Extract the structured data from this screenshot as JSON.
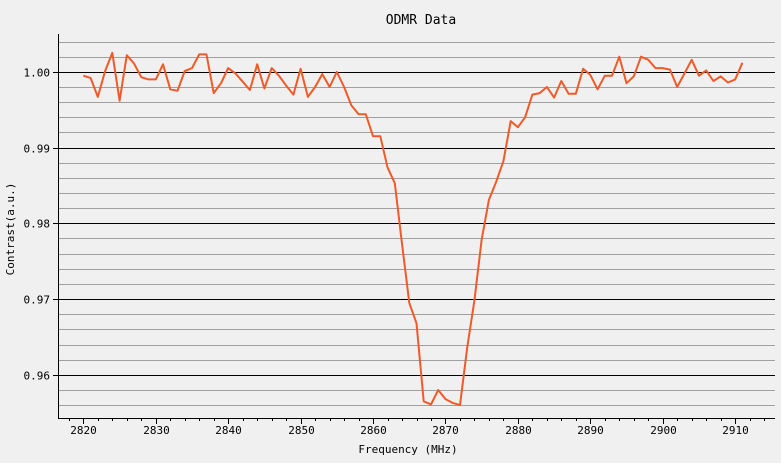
{
  "chart_data": {
    "type": "line",
    "title": "ODMR Data",
    "xlabel": "Frequency (MHz)",
    "ylabel": "Contrast(a.u.)",
    "xlim": [
      2816.5,
      2915.5
    ],
    "ylim": [
      0.9543,
      1.005
    ],
    "x_ticks": [
      2820,
      2830,
      2840,
      2850,
      2860,
      2870,
      2880,
      2890,
      2900,
      2910
    ],
    "x_tick_labels": [
      "2820",
      "2830",
      "2840",
      "2850",
      "2860",
      "2870",
      "2880",
      "2890",
      "2900",
      "2910"
    ],
    "y_major_ticks": [
      0.96,
      0.97,
      0.98,
      0.99,
      1.0
    ],
    "y_tick_labels": [
      "0.96",
      "0.97",
      "0.98",
      "0.99",
      "1.00"
    ],
    "y_minor_step": 0.002,
    "grid": true,
    "colors": {
      "line": "#f05a28",
      "major_grid": "#000000",
      "minor_grid": "#a0a0a0",
      "plot_background": "#f0f0f0"
    },
    "series": [
      {
        "x": [
          2820,
          2821,
          2822,
          2823,
          2824,
          2825,
          2826,
          2827,
          2828,
          2829,
          2830,
          2831,
          2832,
          2833,
          2834,
          2835,
          2836,
          2837,
          2838,
          2839,
          2840,
          2841,
          2842,
          2843,
          2844,
          2845,
          2846,
          2847,
          2848,
          2849,
          2850,
          2851,
          2852,
          2853,
          2854,
          2855,
          2856,
          2857,
          2858,
          2859,
          2860,
          2861,
          2862,
          2863,
          2864,
          2865,
          2866,
          2867,
          2868,
          2869,
          2870,
          2871,
          2872,
          2873,
          2874,
          2875,
          2876,
          2877,
          2878,
          2879,
          2880,
          2881,
          2882,
          2883,
          2884,
          2885,
          2886,
          2887,
          2888,
          2889,
          2890,
          2891,
          2892,
          2893,
          2894,
          2895,
          2896,
          2897,
          2898,
          2899,
          2900,
          2901,
          2902,
          2903,
          2904,
          2905,
          2906,
          2907,
          2908,
          2909,
          2910,
          2911
        ],
        "y": [
          0.9995,
          0.9992,
          0.9967,
          1.0001,
          1.0025,
          0.9962,
          1.0022,
          1.0011,
          0.9993,
          0.999,
          0.999,
          1.001,
          0.9977,
          0.9975,
          1.0001,
          1.0005,
          1.0023,
          1.0023,
          0.9972,
          0.9985,
          1.0005,
          0.9998,
          0.9987,
          0.9976,
          1.001,
          0.9978,
          1.0005,
          0.9995,
          0.9982,
          0.997,
          1.0004,
          0.9967,
          0.998,
          0.9997,
          0.998,
          1.0,
          0.998,
          0.9956,
          0.9944,
          0.9944,
          0.9915,
          0.9915,
          0.9874,
          0.9853,
          0.9773,
          0.9695,
          0.9668,
          0.9565,
          0.9561,
          0.958,
          0.9568,
          0.9563,
          0.956,
          0.9636,
          0.9698,
          0.9779,
          0.9831,
          0.9855,
          0.9882,
          0.9935,
          0.9927,
          0.994,
          0.997,
          0.9972,
          0.998,
          0.9966,
          0.9988,
          0.9971,
          0.9971,
          1.0004,
          0.9996,
          0.9977,
          0.9995,
          0.9995,
          1.002,
          0.9985,
          0.9994,
          1.002,
          1.0016,
          1.0005,
          1.0005,
          1.0003,
          0.998,
          0.9998,
          1.0016,
          0.9995,
          1.0002,
          0.9988,
          0.9994,
          0.9986,
          0.999,
          1.0012
        ]
      }
    ]
  }
}
